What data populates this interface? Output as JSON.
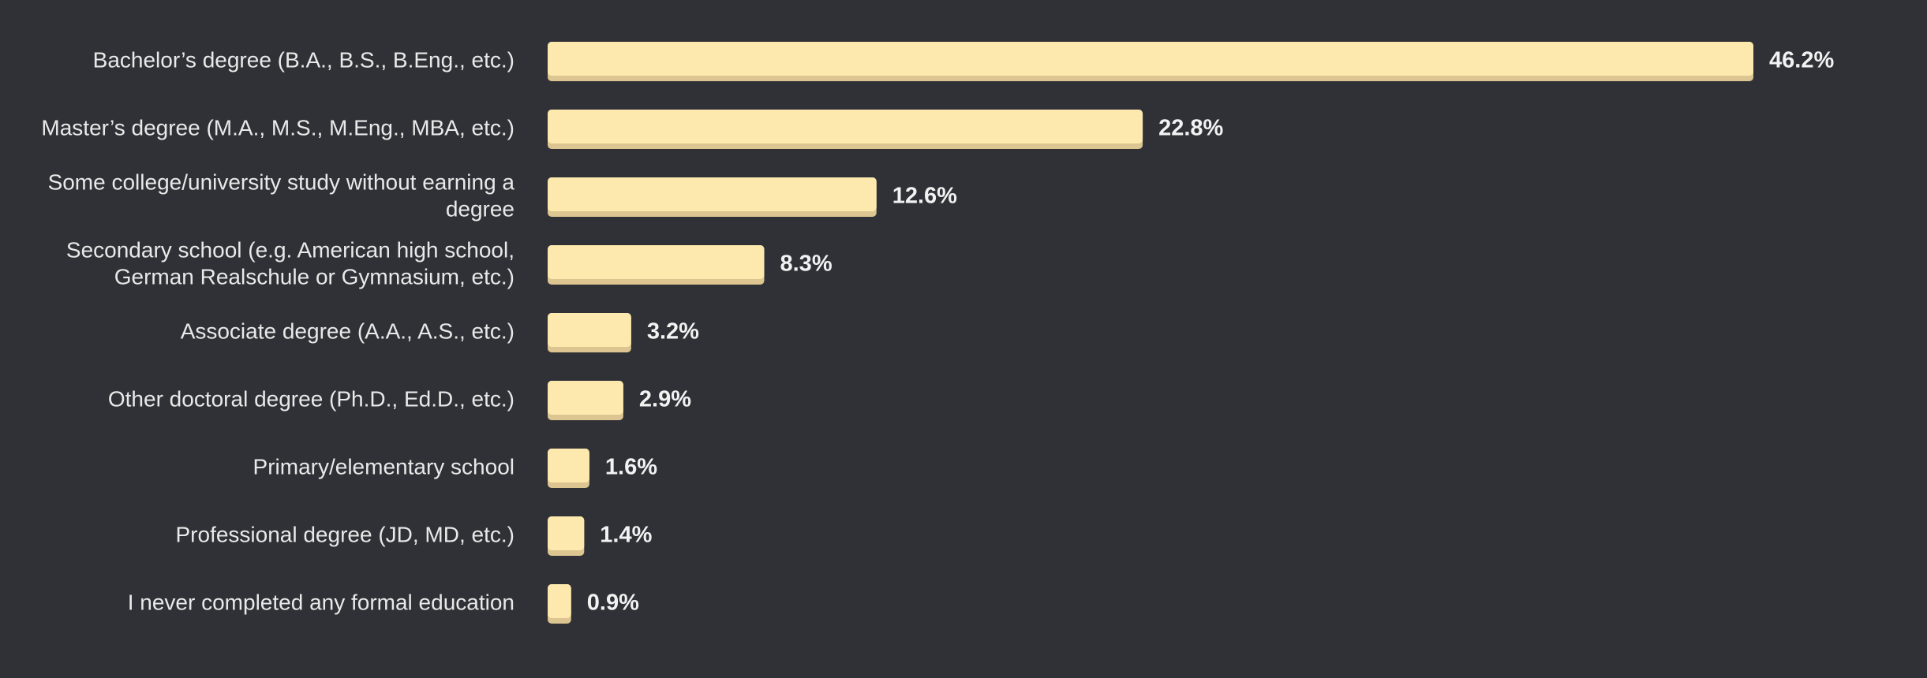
{
  "colors": {
    "background": "#2f3136",
    "bar": "#fde9ae",
    "bar_shadow": "#dcc590",
    "category_text": "#e9e9e9",
    "value_text": "#f2f2f2"
  },
  "chart_data": {
    "type": "bar",
    "orientation": "horizontal",
    "title": "",
    "xlabel": "",
    "ylabel": "",
    "xlim": [
      0,
      46.2
    ],
    "grid": false,
    "legend": "none",
    "categories": [
      [
        "Bachelor’s degree (B.A., B.S., B.Eng., etc.)"
      ],
      [
        "Master’s degree (M.A., M.S., M.Eng., MBA, etc.)"
      ],
      [
        "Some college/university study without earning a",
        "degree"
      ],
      [
        "Secondary school (e.g. American high school,",
        "German Realschule or Gymnasium, etc.)"
      ],
      [
        "Associate degree (A.A., A.S., etc.)"
      ],
      [
        "Other doctoral degree (Ph.D., Ed.D., etc.)"
      ],
      [
        "Primary/elementary school"
      ],
      [
        "Professional degree (JD, MD, etc.)"
      ],
      [
        "I never completed any formal education"
      ]
    ],
    "values": [
      46.2,
      22.8,
      12.6,
      8.3,
      3.2,
      2.9,
      1.6,
      1.4,
      0.9
    ],
    "value_labels": [
      "46.2%",
      "22.8%",
      "12.6%",
      "8.3%",
      "3.2%",
      "2.9%",
      "1.6%",
      "1.4%",
      "0.9%"
    ]
  }
}
